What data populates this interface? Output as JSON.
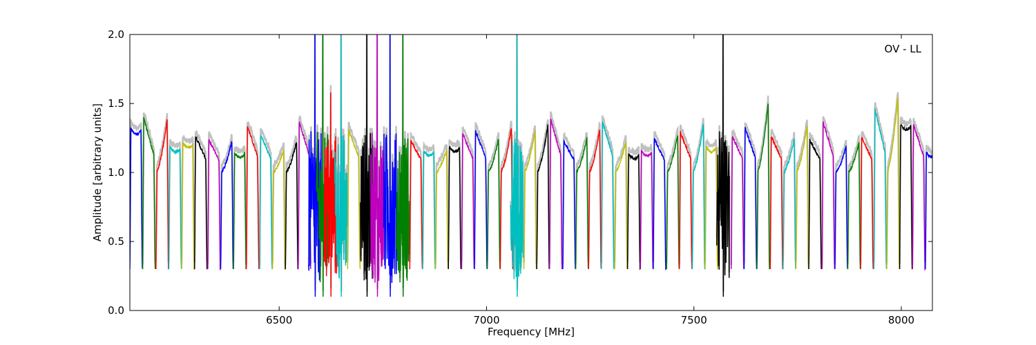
{
  "chart_data": {
    "type": "line",
    "title": "",
    "xlabel": "Frequency [MHz]",
    "ylabel": "Amplitude [arbitrary units]",
    "annotation": "OV - LL",
    "xlim": [
      6140,
      8075
    ],
    "ylim": [
      0.0,
      2.0
    ],
    "x_ticks": [
      6500,
      7000,
      7500,
      8000
    ],
    "x_tick_labels": [
      "6500",
      "7000",
      "7500",
      "8000"
    ],
    "y_ticks": [
      0.0,
      0.5,
      1.0,
      1.5,
      2.0
    ],
    "y_tick_labels": [
      "0.0",
      "0.5",
      "1.0",
      "1.5",
      "2.0"
    ],
    "grid": false,
    "legend": "none",
    "channel_width_mhz": 31.25,
    "colors": [
      "#0000ff",
      "#008000",
      "#ff0000",
      "#00bfbf",
      "#bfbf00",
      "#000000",
      "#bf00bf"
    ],
    "background_color": "#c0c0c0",
    "series": [
      {
        "x_start": 6140,
        "peak": 1.38,
        "shape": "flat"
      },
      {
        "x_start": 6171,
        "peak": 1.42,
        "shape": "falling"
      },
      {
        "x_start": 6203,
        "peak": 1.47,
        "shape": "rising"
      },
      {
        "x_start": 6234,
        "peak": 1.25,
        "shape": "flat"
      },
      {
        "x_start": 6265,
        "peak": 1.28,
        "shape": "flat"
      },
      {
        "x_start": 6296,
        "peak": 1.28,
        "shape": "falling"
      },
      {
        "x_start": 6328,
        "peak": 1.25,
        "shape": "falling"
      },
      {
        "x_start": 6359,
        "peak": 1.28,
        "shape": "rising"
      },
      {
        "x_start": 6390,
        "peak": 1.21,
        "shape": "flat"
      },
      {
        "x_start": 6421,
        "peak": 1.36,
        "shape": "falling"
      },
      {
        "x_start": 6453,
        "peak": 1.29,
        "shape": "falling"
      },
      {
        "x_start": 6484,
        "peak": 1.2,
        "shape": "rising"
      },
      {
        "x_start": 6515,
        "peak": 1.28,
        "shape": "rising"
      },
      {
        "x_start": 6546,
        "peak": 1.39,
        "shape": "falling"
      },
      {
        "x_start": 6571,
        "peak": 2.0,
        "shape": "rfi"
      },
      {
        "x_start": 6590,
        "peak": 2.0,
        "shape": "rfi"
      },
      {
        "x_start": 6609,
        "peak": 1.38,
        "shape": "rfi"
      },
      {
        "x_start": 6634,
        "peak": 2.0,
        "shape": "rfi"
      },
      {
        "x_start": 6665,
        "peak": 1.33,
        "shape": "falling"
      },
      {
        "x_start": 6696,
        "peak": 2.0,
        "shape": "rfi"
      },
      {
        "x_start": 6721,
        "peak": 2.0,
        "shape": "rfi"
      },
      {
        "x_start": 6752,
        "peak": 2.0,
        "shape": "rfi"
      },
      {
        "x_start": 6783,
        "peak": 2.0,
        "shape": "rfi"
      },
      {
        "x_start": 6815,
        "peak": 1.25,
        "shape": "falling"
      },
      {
        "x_start": 6846,
        "peak": 1.22,
        "shape": "flat"
      },
      {
        "x_start": 6877,
        "peak": 1.21,
        "shape": "rising"
      },
      {
        "x_start": 6908,
        "peak": 1.25,
        "shape": "flat"
      },
      {
        "x_start": 6940,
        "peak": 1.3,
        "shape": "falling"
      },
      {
        "x_start": 6971,
        "peak": 1.32,
        "shape": "falling"
      },
      {
        "x_start": 7002,
        "peak": 1.3,
        "shape": "rising"
      },
      {
        "x_start": 7033,
        "peak": 1.4,
        "shape": "rising"
      },
      {
        "x_start": 7058,
        "peak": 1.99,
        "shape": "rfi"
      },
      {
        "x_start": 7090,
        "peak": 1.37,
        "shape": "rising"
      },
      {
        "x_start": 7121,
        "peak": 1.42,
        "shape": "rising"
      },
      {
        "x_start": 7152,
        "peak": 1.41,
        "shape": "falling"
      },
      {
        "x_start": 7184,
        "peak": 1.24,
        "shape": "falling"
      },
      {
        "x_start": 7215,
        "peak": 1.31,
        "shape": "rising"
      },
      {
        "x_start": 7246,
        "peak": 1.38,
        "shape": "rising"
      },
      {
        "x_start": 7277,
        "peak": 1.39,
        "shape": "falling"
      },
      {
        "x_start": 7309,
        "peak": 1.28,
        "shape": "rising"
      },
      {
        "x_start": 7340,
        "peak": 1.2,
        "shape": "flat"
      },
      {
        "x_start": 7371,
        "peak": 1.22,
        "shape": "flat"
      },
      {
        "x_start": 7402,
        "peak": 1.26,
        "shape": "falling"
      },
      {
        "x_start": 7434,
        "peak": 1.34,
        "shape": "rising"
      },
      {
        "x_start": 7465,
        "peak": 1.31,
        "shape": "falling"
      },
      {
        "x_start": 7496,
        "peak": 1.43,
        "shape": "rising"
      },
      {
        "x_start": 7527,
        "peak": 1.25,
        "shape": "flat"
      },
      {
        "x_start": 7555,
        "peak": 2.0,
        "shape": "rfi"
      },
      {
        "x_start": 7590,
        "peak": 1.28,
        "shape": "falling"
      },
      {
        "x_start": 7621,
        "peak": 1.34,
        "shape": "falling"
      },
      {
        "x_start": 7652,
        "peak": 1.61,
        "shape": "rising"
      },
      {
        "x_start": 7684,
        "peak": 1.28,
        "shape": "falling"
      },
      {
        "x_start": 7715,
        "peak": 1.3,
        "shape": "rising"
      },
      {
        "x_start": 7746,
        "peak": 1.42,
        "shape": "rising"
      },
      {
        "x_start": 7777,
        "peak": 1.25,
        "shape": "falling"
      },
      {
        "x_start": 7809,
        "peak": 1.39,
        "shape": "falling"
      },
      {
        "x_start": 7840,
        "peak": 1.23,
        "shape": "rising"
      },
      {
        "x_start": 7871,
        "peak": 1.27,
        "shape": "rising"
      },
      {
        "x_start": 7902,
        "peak": 1.27,
        "shape": "falling"
      },
      {
        "x_start": 7934,
        "peak": 1.49,
        "shape": "falling"
      },
      {
        "x_start": 7965,
        "peak": 1.68,
        "shape": "rising"
      },
      {
        "x_start": 7996,
        "peak": 1.41,
        "shape": "flat"
      },
      {
        "x_start": 8027,
        "peak": 1.37,
        "shape": "falling"
      },
      {
        "x_start": 8058,
        "peak": 1.21,
        "shape": "flat"
      }
    ]
  }
}
